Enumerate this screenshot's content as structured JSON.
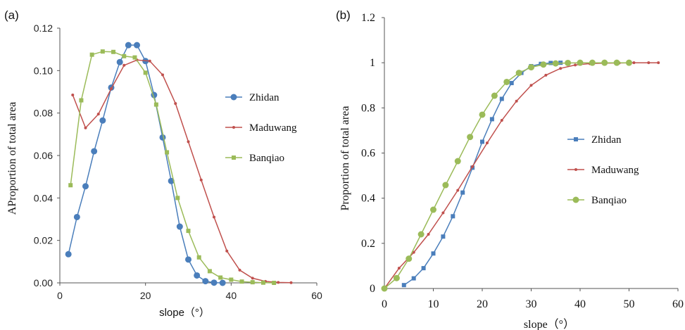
{
  "chart_data": [
    {
      "type": "line",
      "panel_label": "(a)",
      "xlabel": "slope（°）",
      "ylabel": "AProportion of total area",
      "xlim": [
        0,
        60
      ],
      "ylim": [
        0,
        0.12
      ],
      "xticks": [
        "0",
        "20",
        "40",
        "60"
      ],
      "yticks": [
        "0.00",
        "0.02",
        "0.04",
        "0.06",
        "0.08",
        "0.10",
        "0.12"
      ],
      "xtick_values": [
        0,
        20,
        40,
        60
      ],
      "ytick_values": [
        0,
        0.02,
        0.04,
        0.06,
        0.08,
        0.1,
        0.12
      ],
      "grid": false,
      "legend_position": "right",
      "series": [
        {
          "name": "Zhidan",
          "color": "#4a7ebb",
          "marker": "circle",
          "x": [
            2,
            4,
            6,
            8,
            10,
            12,
            14,
            16,
            18,
            20,
            22,
            24,
            26,
            28,
            30,
            32,
            34,
            36,
            38
          ],
          "y": [
            0.0135,
            0.031,
            0.0455,
            0.062,
            0.0765,
            0.092,
            0.104,
            0.112,
            0.112,
            0.1045,
            0.0885,
            0.0685,
            0.048,
            0.0265,
            0.011,
            0.0035,
            0.0008,
            0.0001,
            0.0
          ]
        },
        {
          "name": "Maduwang",
          "color": "#c0504d",
          "marker": "dot",
          "x": [
            3,
            6,
            9,
            12,
            15,
            18,
            21,
            24,
            27,
            30,
            33,
            36,
            39,
            42,
            45,
            48,
            51,
            54
          ],
          "y": [
            0.0885,
            0.073,
            0.0795,
            0.0915,
            0.1025,
            0.105,
            0.1045,
            0.098,
            0.0845,
            0.0665,
            0.0485,
            0.031,
            0.015,
            0.006,
            0.0022,
            0.0007,
            0.0002,
            0.0001
          ]
        },
        {
          "name": "Banqiao",
          "color": "#9bbb59",
          "marker": "square",
          "x": [
            2.5,
            5,
            7.5,
            10,
            12.5,
            15,
            17.5,
            20,
            22.5,
            25,
            27.5,
            30,
            32.5,
            35,
            37.5,
            40,
            42.5,
            45,
            47.5,
            50
          ],
          "y": [
            0.046,
            0.086,
            0.1075,
            0.109,
            0.1088,
            0.1068,
            0.1062,
            0.099,
            0.084,
            0.0615,
            0.04,
            0.0245,
            0.012,
            0.0055,
            0.0025,
            0.0015,
            0.0006,
            0.0003,
            0.0001,
            0.0
          ]
        }
      ]
    },
    {
      "type": "line",
      "panel_label": "(b)",
      "xlabel": "slope（°）",
      "ylabel": "Proportion of total area",
      "xlim": [
        0,
        60
      ],
      "ylim": [
        0,
        1.2
      ],
      "xticks": [
        "0",
        "10",
        "20",
        "30",
        "40",
        "50",
        "60"
      ],
      "yticks": [
        "0",
        "0.2",
        "0.4",
        "0.6",
        "0.8",
        "1",
        "1.2"
      ],
      "xtick_values": [
        0,
        10,
        20,
        30,
        40,
        50,
        60
      ],
      "ytick_values": [
        0,
        0.2,
        0.4,
        0.6,
        0.8,
        1.0,
        1.2
      ],
      "grid": false,
      "legend_position": "right",
      "series": [
        {
          "name": "Zhidan",
          "color": "#4a7ebb",
          "marker": "square",
          "x": [
            4,
            6,
            8,
            10,
            12,
            14,
            16,
            18,
            20,
            22,
            24,
            26,
            28,
            30,
            32,
            34,
            36
          ],
          "y": [
            0.015,
            0.045,
            0.09,
            0.155,
            0.23,
            0.32,
            0.425,
            0.535,
            0.65,
            0.75,
            0.84,
            0.91,
            0.955,
            0.985,
            0.995,
            0.999,
            1.0
          ]
        },
        {
          "name": "Maduwang",
          "color": "#c0504d",
          "marker": "dot",
          "x": [
            0,
            3,
            6,
            9,
            12,
            15,
            18,
            21,
            24,
            27,
            30,
            33,
            36,
            39,
            42,
            45,
            48,
            51,
            54,
            56
          ],
          "y": [
            0.0,
            0.09,
            0.16,
            0.24,
            0.335,
            0.435,
            0.54,
            0.645,
            0.745,
            0.83,
            0.9,
            0.945,
            0.975,
            0.99,
            0.996,
            0.998,
            0.999,
            1.0,
            1.0,
            1.0
          ]
        },
        {
          "name": "Banqiao",
          "color": "#9bbb59",
          "marker": "circle",
          "x": [
            0,
            2.5,
            5,
            7.5,
            10,
            12.5,
            15,
            17.5,
            20,
            22.5,
            25,
            27.5,
            30,
            32.5,
            35,
            37.5,
            40,
            42.5,
            45,
            47.5,
            50
          ],
          "y": [
            0.0,
            0.046,
            0.132,
            0.24,
            0.349,
            0.458,
            0.564,
            0.671,
            0.77,
            0.854,
            0.915,
            0.955,
            0.98,
            0.992,
            0.997,
            0.999,
            1.0,
            1.0,
            1.0,
            1.0,
            1.0
          ]
        }
      ]
    }
  ]
}
